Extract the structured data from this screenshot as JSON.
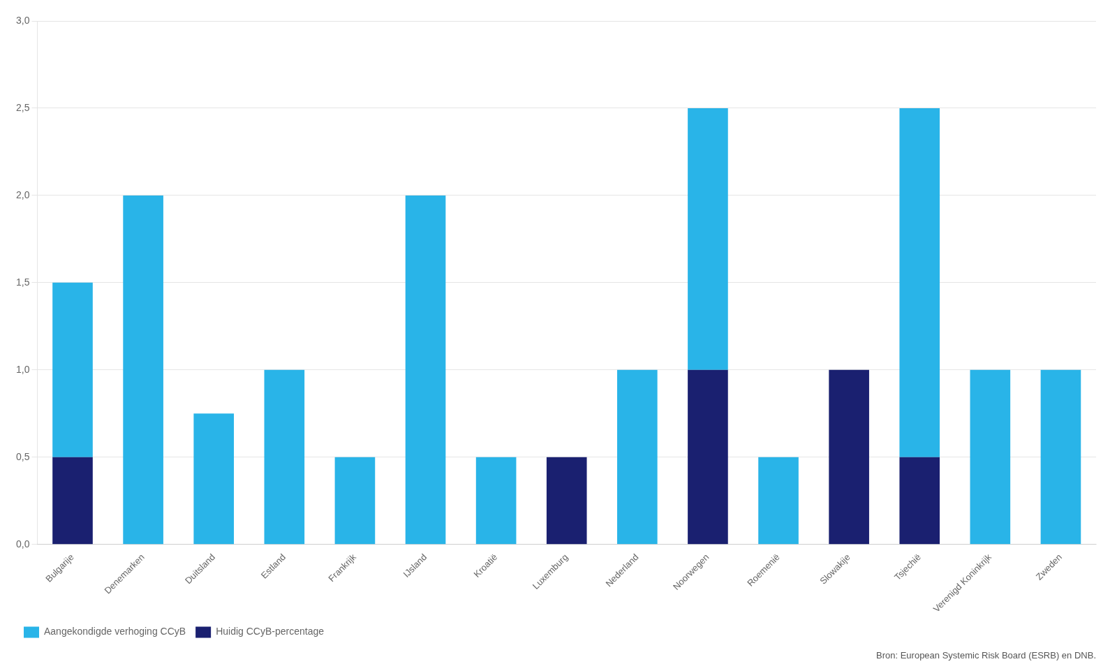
{
  "chart_data": {
    "type": "bar",
    "stacked": true,
    "categories": [
      "Bulgarije",
      "Denemarken",
      "Duitsland",
      "Estland",
      "Frankrijk",
      "IJsland",
      "Kroatië",
      "Luxemburg",
      "Nederland",
      "Noorwegen",
      "Roemenië",
      "Slowakije",
      "Tsjechië",
      "Verenigd Koninkrijk",
      "Zweden"
    ],
    "series": [
      {
        "name": "Huidig CCyB-percentage",
        "color": "#1a2070",
        "values": [
          0.5,
          0.0,
          0.0,
          0.0,
          0.0,
          0.0,
          0.0,
          0.5,
          0.0,
          1.0,
          0.0,
          1.0,
          0.5,
          0.0,
          0.0
        ]
      },
      {
        "name": "Aangekondigde verhoging CCyB",
        "color": "#29b4e8",
        "values": [
          1.0,
          2.0,
          0.75,
          1.0,
          0.5,
          2.0,
          0.5,
          0.0,
          1.0,
          1.5,
          0.5,
          0.0,
          2.0,
          1.0,
          1.0
        ]
      }
    ],
    "ylim": [
      0,
      3.0
    ],
    "yticks": [
      {
        "value": 0.0,
        "label": "0,0"
      },
      {
        "value": 0.5,
        "label": "0,5"
      },
      {
        "value": 1.0,
        "label": "1,0"
      },
      {
        "value": 1.5,
        "label": "1,5"
      },
      {
        "value": 2.0,
        "label": "2,0"
      },
      {
        "value": 2.5,
        "label": "2,5"
      },
      {
        "value": 3.0,
        "label": "3,0"
      }
    ],
    "grid": true,
    "legend": "lower left",
    "annotations": [
      "Bron: European Systemic Risk Board (ESRB) en DNB."
    ]
  }
}
